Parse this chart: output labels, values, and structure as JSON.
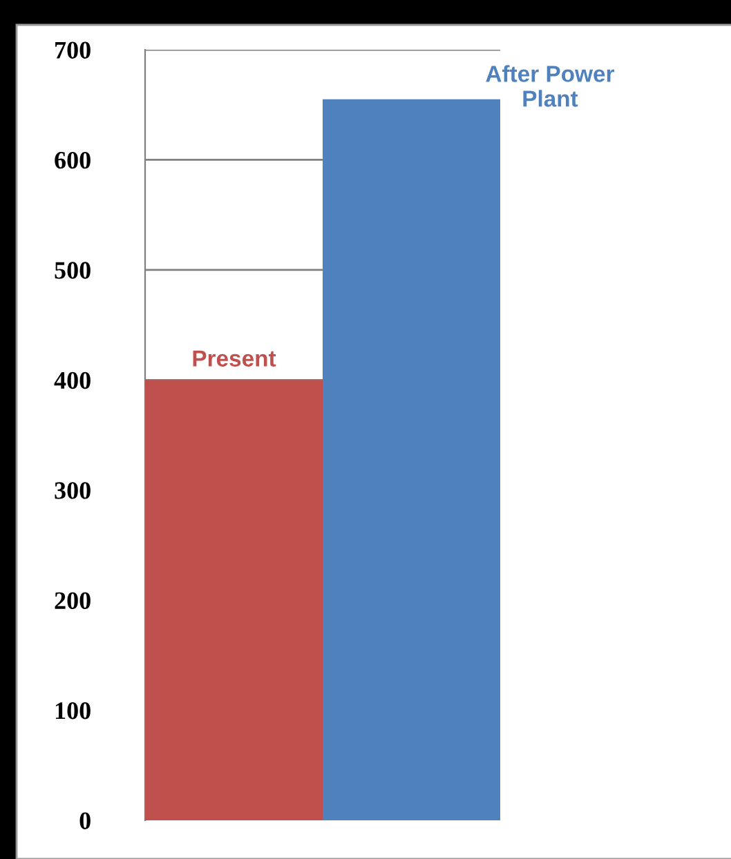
{
  "chart_data": {
    "type": "bar",
    "categories": [
      null,
      null
    ],
    "series": [
      {
        "name": "Present",
        "color": "#c0504d",
        "values": [
          400,
          null
        ]
      },
      {
        "name": "After Power Plant",
        "color": "#4f81bd",
        "values": [
          null,
          655
        ]
      }
    ],
    "ylim": [
      0,
      700
    ],
    "yticks": [
      0,
      100,
      200,
      300,
      400,
      500,
      600,
      700
    ],
    "grid": "y",
    "legend": false
  }
}
